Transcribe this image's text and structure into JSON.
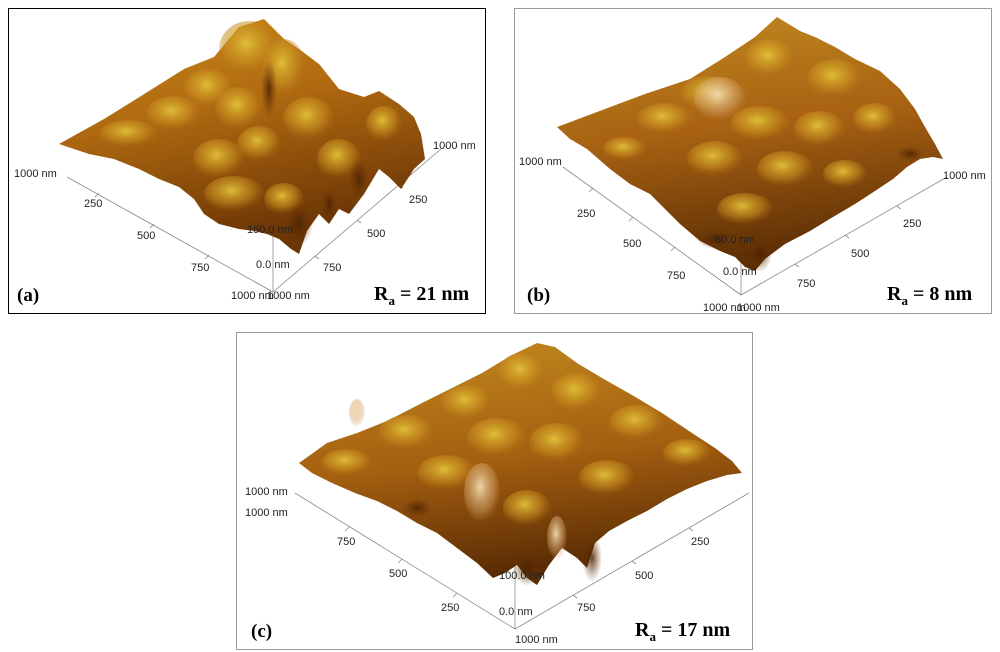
{
  "panels": [
    {
      "id": "a",
      "letter": "(a)",
      "ra_symbol": "R",
      "ra_subscript": "a",
      "ra_value": "= 21 nm",
      "axis_labels": {
        "corner_left": "1000 nm",
        "corner_right": "1000 nm",
        "bottom_left": "1000 nm",
        "bottom_right": "1000 nm",
        "left_ticks": [
          "250",
          "500",
          "750"
        ],
        "right_ticks": [
          "250",
          "500",
          "750"
        ],
        "z_top": "150.0 nm",
        "z_bottom": "0.0 nm"
      }
    },
    {
      "id": "b",
      "letter": "(b)",
      "ra_symbol": "R",
      "ra_subscript": "a",
      "ra_value": "= 8 nm",
      "axis_labels": {
        "corner_left": "1000 nm",
        "corner_right": "1000 nm",
        "bottom_left": "1000 nm",
        "bottom_right": "1000 nm",
        "left_ticks": [
          "250",
          "500",
          "750"
        ],
        "right_ticks": [
          "250",
          "500",
          "750"
        ],
        "z_top": "50.0 nm",
        "z_bottom": "0.0 nm"
      }
    },
    {
      "id": "c",
      "letter": "(c)",
      "ra_symbol": "R",
      "ra_subscript": "a",
      "ra_value": "= 17 nm",
      "axis_labels": {
        "corner_left_1": "1000 nm",
        "corner_left_2": "1000 nm",
        "bottom": "1000 nm",
        "left_ticks": [
          "750",
          "500",
          "250"
        ],
        "right_ticks": [
          "250",
          "500",
          "750"
        ],
        "z_top": "100.0 nm",
        "z_bottom": "0.0 nm"
      }
    }
  ],
  "colors": {
    "surface_dark": "#6b3505",
    "surface_mid": "#b56a0e",
    "surface_light": "#d9b22a",
    "surface_highlight": "#e9d6a0"
  }
}
